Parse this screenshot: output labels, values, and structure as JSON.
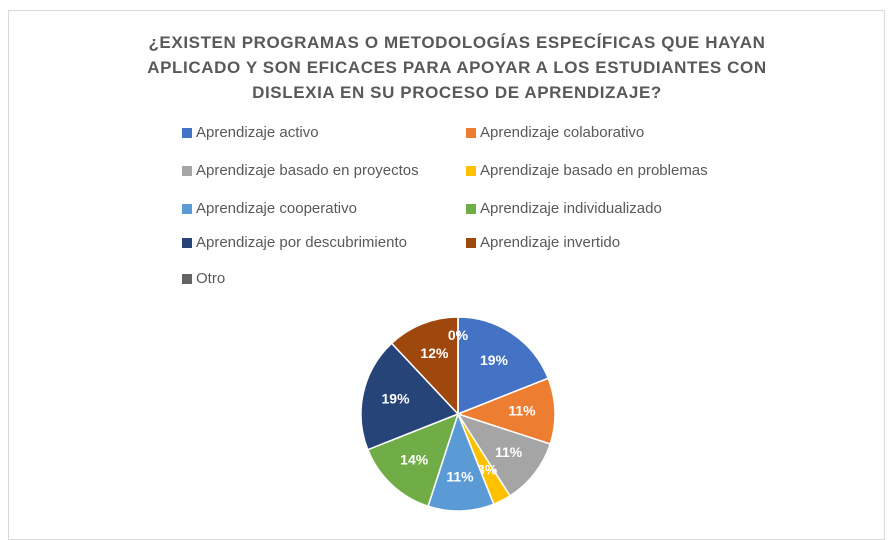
{
  "chart_data": {
    "type": "pie",
    "title": "¿EXISTEN PROGRAMAS O METODOLOGÍAS ESPECÍFICAS QUE HAYAN APLICADO Y SON EFICACES PARA APOYAR A LOS ESTUDIANTES CON DISLEXIA EN SU PROCESO DE APRENDIZAJE?",
    "categories": [
      "Aprendizaje activo",
      "Aprendizaje colaborativo",
      "Aprendizaje basado en proyectos",
      "Aprendizaje basado en problemas",
      "Aprendizaje cooperativo",
      "Aprendizaje individualizado",
      "Aprendizaje por descubrimiento",
      "Aprendizaje invertido",
      "Otro"
    ],
    "values": [
      19,
      11,
      11,
      3,
      11,
      14,
      19,
      12,
      0
    ],
    "value_labels": [
      "19%",
      "11%",
      "11%",
      "3%",
      "11%",
      "14%",
      "19%",
      "12%",
      "0%"
    ],
    "colors": [
      "#4472c4",
      "#ed7d31",
      "#a5a5a5",
      "#ffc000",
      "#5b9bd5",
      "#70ad47",
      "#264478",
      "#9e480e",
      "#636363"
    ],
    "legend": "top"
  }
}
